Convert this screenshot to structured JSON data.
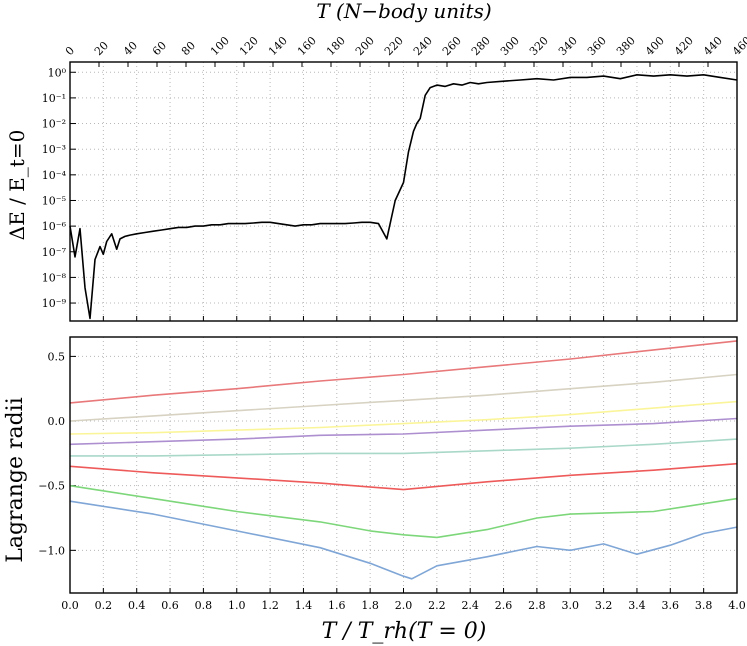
{
  "top_axis_label": "T (N−body units)",
  "chart_data": [
    {
      "type": "line",
      "panel": "energy-error",
      "ylabel": "ΔE / E_t=0",
      "yscale": "log",
      "ylim_exp": [
        -9.7,
        0.4
      ],
      "xlim": [
        0,
        4.0
      ],
      "top_xlim": [
        0,
        460
      ],
      "top_x_ticks": [
        0,
        20,
        40,
        60,
        80,
        100,
        120,
        140,
        160,
        180,
        200,
        220,
        240,
        260,
        280,
        300,
        320,
        340,
        360,
        380,
        400,
        420,
        440,
        460
      ],
      "y_tick_labels": [
        "10⁻⁹",
        "10⁻⁸",
        "10⁻⁷",
        "10⁻⁶",
        "10⁻⁵",
        "10⁻⁴",
        "10⁻³",
        "10⁻²",
        "10⁻¹",
        "10⁰"
      ],
      "y_tick_exponents": [
        -9,
        -8,
        -7,
        -6,
        -5,
        -4,
        -3,
        -2,
        -1,
        0
      ],
      "grid": true,
      "series": [
        {
          "color": "#000000",
          "x": [
            0.0,
            0.03,
            0.06,
            0.09,
            0.12,
            0.15,
            0.18,
            0.2,
            0.22,
            0.25,
            0.28,
            0.3,
            0.33,
            0.36,
            0.4,
            0.45,
            0.5,
            0.55,
            0.6,
            0.65,
            0.7,
            0.75,
            0.8,
            0.85,
            0.9,
            0.95,
            1.0,
            1.05,
            1.1,
            1.15,
            1.2,
            1.25,
            1.3,
            1.35,
            1.4,
            1.45,
            1.5,
            1.55,
            1.6,
            1.65,
            1.7,
            1.75,
            1.8,
            1.85,
            1.9,
            1.95,
            2.0,
            2.03,
            2.06,
            2.08,
            2.1,
            2.13,
            2.16,
            2.2,
            2.25,
            2.3,
            2.35,
            2.4,
            2.45,
            2.5,
            2.6,
            2.7,
            2.8,
            2.9,
            3.0,
            3.1,
            3.2,
            3.3,
            3.4,
            3.5,
            3.6,
            3.7,
            3.8,
            3.9,
            4.0
          ],
          "logy": [
            -6.0,
            -7.2,
            -6.1,
            -8.4,
            -9.6,
            -7.3,
            -6.8,
            -7.1,
            -6.6,
            -6.3,
            -6.9,
            -6.5,
            -6.4,
            -6.35,
            -6.3,
            -6.25,
            -6.2,
            -6.15,
            -6.1,
            -6.05,
            -6.05,
            -6.0,
            -6.0,
            -5.95,
            -5.95,
            -5.9,
            -5.9,
            -5.9,
            -5.88,
            -5.85,
            -5.85,
            -5.9,
            -5.95,
            -6.0,
            -5.95,
            -5.95,
            -5.9,
            -5.9,
            -5.9,
            -5.9,
            -5.88,
            -5.85,
            -5.85,
            -5.9,
            -6.5,
            -5.0,
            -4.3,
            -3.1,
            -2.3,
            -2.0,
            -1.8,
            -0.9,
            -0.6,
            -0.5,
            -0.55,
            -0.45,
            -0.5,
            -0.4,
            -0.45,
            -0.4,
            -0.35,
            -0.3,
            -0.25,
            -0.3,
            -0.2,
            -0.2,
            -0.15,
            -0.25,
            -0.1,
            -0.15,
            -0.1,
            -0.15,
            -0.1,
            -0.2,
            -0.3
          ]
        }
      ]
    },
    {
      "type": "line",
      "panel": "lagrange-radii",
      "ylabel": "Lagrange radii",
      "xlabel": "T / T_rh(T = 0)",
      "xlim": [
        0,
        4.0
      ],
      "ylim": [
        -1.33,
        0.65
      ],
      "x_ticks": [
        0.0,
        0.2,
        0.4,
        0.6,
        0.8,
        1.0,
        1.2,
        1.4,
        1.6,
        1.8,
        2.0,
        2.2,
        2.4,
        2.6,
        2.8,
        3.0,
        3.2,
        3.4,
        3.6,
        3.8,
        4.0
      ],
      "x_tick_labels": [
        "0.0",
        "0.2",
        "0.4",
        "0.6",
        "0.8",
        "1.0",
        "1.2",
        "1.4",
        "1.6",
        "1.8",
        "2.0",
        "2.2",
        "2.4",
        "2.6",
        "2.8",
        "3.0",
        "3.2",
        "3.4",
        "3.6",
        "3.8",
        "4.0"
      ],
      "y_ticks": [
        -1.0,
        -0.5,
        0.0,
        0.5
      ],
      "y_tick_labels": [
        "−1.0",
        "−0.5",
        "0.0",
        "0.5"
      ],
      "grid": true,
      "series": [
        {
          "color": "#e8787a",
          "x": [
            0,
            0.5,
            1.0,
            1.5,
            2.0,
            2.5,
            3.0,
            3.5,
            4.0
          ],
          "y": [
            0.14,
            0.2,
            0.25,
            0.31,
            0.36,
            0.42,
            0.48,
            0.55,
            0.62
          ]
        },
        {
          "color": "#d7d2c2",
          "x": [
            0,
            0.5,
            1.0,
            1.5,
            2.0,
            2.5,
            3.0,
            3.5,
            4.0
          ],
          "y": [
            0.0,
            0.04,
            0.08,
            0.12,
            0.16,
            0.2,
            0.25,
            0.3,
            0.36
          ]
        },
        {
          "color": "#fbf59a",
          "x": [
            0,
            0.5,
            1.0,
            1.5,
            2.0,
            2.5,
            3.0,
            3.5,
            4.0
          ],
          "y": [
            -0.1,
            -0.09,
            -0.07,
            -0.05,
            -0.02,
            0.01,
            0.05,
            0.1,
            0.15
          ]
        },
        {
          "color": "#ad8fd0",
          "x": [
            0,
            0.5,
            1.0,
            1.5,
            2.0,
            2.5,
            3.0,
            3.5,
            4.0
          ],
          "y": [
            -0.18,
            -0.16,
            -0.14,
            -0.11,
            -0.1,
            -0.07,
            -0.04,
            -0.02,
            0.02
          ]
        },
        {
          "color": "#a9d8c9",
          "x": [
            0,
            0.5,
            1.0,
            1.5,
            2.0,
            2.5,
            3.0,
            3.5,
            4.0
          ],
          "y": [
            -0.27,
            -0.27,
            -0.26,
            -0.25,
            -0.25,
            -0.23,
            -0.21,
            -0.18,
            -0.14
          ]
        },
        {
          "color": "#ee5a5a",
          "x": [
            0,
            0.5,
            1.0,
            1.5,
            2.0,
            2.5,
            3.0,
            3.5,
            4.0
          ],
          "y": [
            -0.35,
            -0.4,
            -0.44,
            -0.48,
            -0.53,
            -0.47,
            -0.42,
            -0.38,
            -0.33
          ]
        },
        {
          "color": "#7dd77a",
          "x": [
            0,
            0.5,
            1.0,
            1.5,
            1.8,
            2.0,
            2.2,
            2.5,
            2.8,
            3.0,
            3.5,
            4.0
          ],
          "y": [
            -0.5,
            -0.6,
            -0.7,
            -0.78,
            -0.85,
            -0.88,
            -0.9,
            -0.84,
            -0.75,
            -0.72,
            -0.7,
            -0.6
          ]
        },
        {
          "color": "#7fa6d6",
          "x": [
            0,
            0.5,
            1.0,
            1.5,
            1.8,
            2.0,
            2.05,
            2.2,
            2.5,
            2.8,
            3.0,
            3.2,
            3.4,
            3.6,
            3.8,
            4.0
          ],
          "y": [
            -0.62,
            -0.72,
            -0.85,
            -0.98,
            -1.1,
            -1.2,
            -1.22,
            -1.12,
            -1.05,
            -0.97,
            -1.0,
            -0.95,
            -1.03,
            -0.96,
            -0.87,
            -0.82
          ]
        }
      ]
    }
  ]
}
